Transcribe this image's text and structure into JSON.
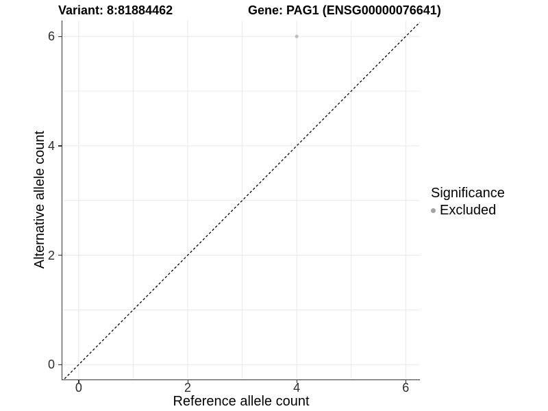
{
  "chart_data": {
    "type": "scatter",
    "titles": [
      {
        "text": "Variant: 8:81884462"
      },
      {
        "text": "Gene: PAG1 (ENSG00000076641)"
      }
    ],
    "xlabel": "Reference allele count",
    "ylabel": "Alternative allele count",
    "xlim": [
      -0.3,
      6.26
    ],
    "ylim": [
      -0.26,
      6.29
    ],
    "xticks": [
      0,
      2,
      4,
      6
    ],
    "yticks": [
      0,
      2,
      4,
      6
    ],
    "gridlines_x": [
      0,
      1,
      2,
      3,
      4,
      5,
      6
    ],
    "gridlines_y": [
      0,
      1,
      2,
      3,
      4,
      5,
      6
    ],
    "grid": "on",
    "points": [
      {
        "x": 4,
        "y": 6,
        "series": "Excluded"
      }
    ],
    "identity_line": {
      "equation": "y = x",
      "style": "dashed",
      "color": "#000000"
    },
    "legend": {
      "title": "Significance",
      "position": "right",
      "entries": [
        {
          "label": "Excluded",
          "marker": "circle",
          "color": "#a3a3a3"
        }
      ]
    },
    "colors": {
      "point": "#bfbfbf",
      "grid": "#e8e8e8",
      "axis_line": "#333333",
      "tick_text": "#2b2b2b",
      "title_text": "#000000"
    }
  }
}
